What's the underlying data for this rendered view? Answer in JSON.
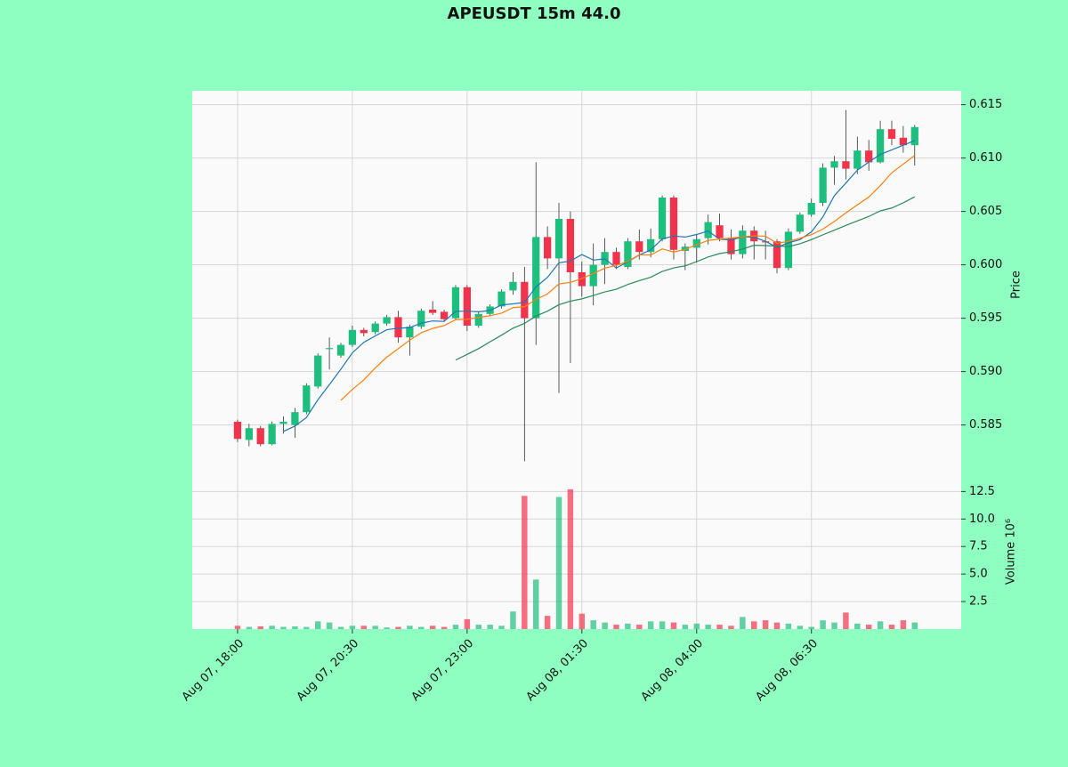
{
  "chart_data": {
    "type": "candlestick",
    "title": "APEUSDT 15m 44.0",
    "categories": [
      "Aug 07, 18:00",
      null,
      null,
      null,
      null,
      null,
      null,
      null,
      null,
      null,
      "Aug 07, 20:30",
      null,
      null,
      null,
      null,
      null,
      null,
      null,
      null,
      null,
      "Aug 07, 23:00",
      null,
      null,
      null,
      null,
      null,
      null,
      null,
      null,
      null,
      "Aug 08, 01:30",
      null,
      null,
      null,
      null,
      null,
      null,
      null,
      null,
      null,
      "Aug 08, 04:00",
      null,
      null,
      null,
      null,
      null,
      null,
      null,
      null,
      null,
      "Aug 08, 06:30",
      null,
      null,
      null,
      null,
      null,
      null,
      null,
      null,
      null
    ],
    "open": [
      0.5853,
      0.5836,
      0.5847,
      0.5832,
      0.5851,
      0.585,
      0.5862,
      0.5886,
      0.5921,
      0.5915,
      0.5925,
      0.5939,
      0.5937,
      0.5945,
      0.5951,
      0.5932,
      0.5942,
      0.5958,
      0.5956,
      0.595,
      0.5979,
      0.5943,
      0.5954,
      0.5961,
      0.5976,
      0.5984,
      0.595,
      0.6026,
      0.6006,
      0.6043,
      0.5993,
      0.598,
      0.6,
      0.6012,
      0.5998,
      0.6022,
      0.6012,
      0.6024,
      0.6063,
      0.6013,
      0.6016,
      0.6025,
      0.6037,
      0.6025,
      0.601,
      0.6032,
      0.6022,
      0.6022,
      0.5997,
      0.6031,
      0.6047,
      0.6058,
      0.6091,
      0.6097,
      0.609,
      0.6107,
      0.6096,
      0.6127,
      0.6119,
      0.6112
    ],
    "high": [
      0.5855,
      0.5851,
      0.5849,
      0.5853,
      0.5858,
      0.5866,
      0.5889,
      0.5917,
      0.5932,
      0.5927,
      0.5943,
      0.5941,
      0.5947,
      0.5953,
      0.5957,
      0.5944,
      0.5959,
      0.5966,
      0.5958,
      0.5981,
      0.5981,
      0.5956,
      0.5963,
      0.5977,
      0.5993,
      0.5998,
      0.6096,
      0.6036,
      0.6058,
      0.605,
      0.6003,
      0.602,
      0.6025,
      0.6016,
      0.6025,
      0.6033,
      0.6034,
      0.6065,
      0.6065,
      0.602,
      0.6028,
      0.6047,
      0.6048,
      0.6033,
      0.6037,
      0.6036,
      0.6032,
      0.6024,
      0.6034,
      0.6049,
      0.6062,
      0.6095,
      0.6102,
      0.6145,
      0.612,
      0.6117,
      0.6135,
      0.6135,
      0.613,
      0.6131
    ],
    "low": [
      0.5834,
      0.583,
      0.583,
      0.5831,
      0.5842,
      0.5838,
      0.586,
      0.5884,
      0.5902,
      0.5913,
      0.5923,
      0.5933,
      0.5935,
      0.5943,
      0.5927,
      0.5915,
      0.594,
      0.5953,
      0.5947,
      0.5948,
      0.5938,
      0.5941,
      0.5952,
      0.5959,
      0.5972,
      0.5816,
      0.5925,
      0.5996,
      0.588,
      0.5908,
      0.597,
      0.5962,
      0.5982,
      0.5996,
      0.5996,
      0.6005,
      0.6007,
      0.6022,
      0.6005,
      0.5995,
      0.6002,
      0.6019,
      0.6022,
      0.6005,
      0.6006,
      0.6005,
      0.6005,
      0.5992,
      0.5995,
      0.6029,
      0.6045,
      0.6055,
      0.6075,
      0.608,
      0.6085,
      0.6088,
      0.6095,
      0.6112,
      0.6105,
      0.6093
    ],
    "close": [
      0.5837,
      0.5847,
      0.5832,
      0.5851,
      0.5853,
      0.5862,
      0.5887,
      0.5915,
      0.5922,
      0.5925,
      0.5939,
      0.5936,
      0.5945,
      0.5951,
      0.5932,
      0.5942,
      0.5957,
      0.5955,
      0.5949,
      0.5979,
      0.5943,
      0.5954,
      0.5961,
      0.5975,
      0.5984,
      0.595,
      0.6026,
      0.6006,
      0.6043,
      0.5993,
      0.598,
      0.6,
      0.6012,
      0.6,
      0.6022,
      0.6012,
      0.6024,
      0.6063,
      0.6014,
      0.6017,
      0.6024,
      0.604,
      0.6025,
      0.601,
      0.6032,
      0.6022,
      0.6021,
      0.5997,
      0.6031,
      0.6047,
      0.6058,
      0.6091,
      0.6097,
      0.609,
      0.6107,
      0.6096,
      0.6127,
      0.6118,
      0.6112,
      0.6129
    ],
    "up_color": "#1dbf7e",
    "down_color": "#f3334c",
    "ylim": [
      0.5798,
      0.6163
    ],
    "yticks": [
      0.585,
      {
        "value": 0.59,
        "label": "0.590"
      },
      0.595,
      {
        "value": 0.6,
        "label": "0.600"
      },
      0.605,
      {
        "value": 0.61,
        "label": "0.610"
      },
      0.615
    ],
    "y_label": "Price",
    "grid": true,
    "moving_averages": [
      {
        "color": "#1f77b4",
        "values": [
          null,
          null,
          null,
          null,
          0.5844,
          0.5849,
          0.5857,
          0.58736,
          0.58878,
          0.59022,
          0.59176,
          0.59274,
          0.59334,
          0.59392,
          0.59406,
          0.59412,
          0.59454,
          0.59474,
          0.5947,
          0.59564,
          0.59566,
          0.5956,
          0.59572,
          0.59624,
          0.59634,
          0.59648,
          0.59792,
          0.59882,
          0.60018,
          0.60036,
          0.60096,
          0.60044,
          0.60056,
          0.5997,
          0.60028,
          0.60092,
          0.6014,
          0.60242,
          0.6027,
          0.6026,
          0.60284,
          0.60316,
          0.6024,
          0.60232,
          0.60262,
          0.60258,
          0.6022,
          0.60164,
          0.60206,
          0.60236,
          0.60308,
          0.60448,
          0.60648,
          0.60766,
          0.60886,
          0.60962,
          0.61034,
          0.61076,
          0.6112,
          0.61164
        ]
      },
      {
        "color": "#ff7f0e",
        "values": [
          null,
          null,
          null,
          null,
          null,
          null,
          null,
          null,
          null,
          0.58731,
          0.58833,
          0.58922,
          0.59035,
          0.59135,
          0.59214,
          0.59294,
          0.59364,
          0.59404,
          0.59431,
          0.59485,
          0.59489,
          0.59507,
          0.59523,
          0.59547,
          0.59599,
          0.59607,
          0.59676,
          0.59727,
          0.59821,
          0.59835,
          0.59872,
          0.59918,
          0.59969,
          0.59994,
          0.60032,
          0.60094,
          0.60092,
          0.60149,
          0.6012,
          0.60144,
          0.60188,
          0.60228,
          0.60241,
          0.60251,
          0.60261,
          0.60271,
          0.60268,
          0.60202,
          0.60219,
          0.60249,
          0.60283,
          0.60334,
          0.60406,
          0.60486,
          0.60561,
          0.60635,
          0.60741,
          0.60862,
          0.60943,
          0.61025
        ]
      },
      {
        "color": "#2a8a5c",
        "values": [
          null,
          null,
          null,
          null,
          null,
          null,
          null,
          null,
          null,
          null,
          null,
          null,
          null,
          null,
          null,
          null,
          null,
          null,
          null,
          0.59108,
          0.59161,
          0.59215,
          0.59279,
          0.59341,
          0.59407,
          0.59451,
          0.5952,
          0.59566,
          0.59626,
          0.5966,
          0.59681,
          0.59713,
          0.59746,
          0.59771,
          0.59816,
          0.59851,
          0.59884,
          0.59938,
          0.59971,
          0.5999,
          0.6003,
          0.60073,
          0.60105,
          0.60123,
          0.60147,
          0.60183,
          0.6018,
          0.60176,
          0.6017,
          0.60197,
          0.60236,
          0.60281,
          0.60324,
          0.60369,
          0.60411,
          0.60453,
          0.60505,
          0.60532,
          0.60581,
          0.60637
        ]
      }
    ],
    "volume": {
      "label": "Volume  10⁶",
      "values": [
        0.3,
        0.2,
        0.25,
        0.3,
        0.2,
        0.25,
        0.2,
        0.7,
        0.6,
        0.2,
        0.3,
        0.3,
        0.3,
        0.15,
        0.2,
        0.3,
        0.2,
        0.3,
        0.2,
        0.4,
        0.9,
        0.4,
        0.4,
        0.3,
        1.6,
        12.1,
        4.5,
        1.2,
        12.0,
        12.7,
        1.4,
        0.8,
        0.6,
        0.4,
        0.5,
        0.4,
        0.7,
        0.7,
        0.6,
        0.4,
        0.5,
        0.4,
        0.4,
        0.3,
        1.1,
        0.7,
        0.8,
        0.6,
        0.5,
        0.3,
        0.2,
        0.8,
        0.6,
        1.5,
        0.5,
        0.4,
        0.7,
        0.4,
        0.8,
        0.6
      ],
      "ylim": [
        0,
        13.5
      ],
      "yticks": [
        2.5,
        {
          "value": 5,
          "label": "5.0"
        },
        7.5,
        {
          "value": 10,
          "label": "10.0"
        },
        12.5
      ]
    }
  }
}
